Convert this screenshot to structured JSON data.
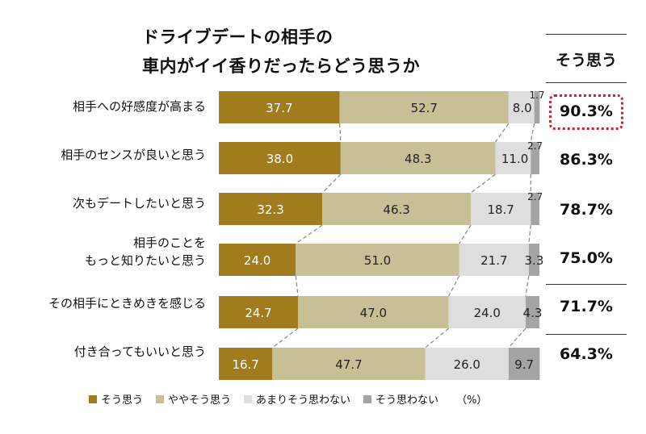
{
  "title_line1": "ドライブデートの相手の",
  "title_line2": "車内がイイ香りだったらどう思うか",
  "summary_header": "そう思う",
  "unit": "（%）",
  "colors": {
    "strongly_agree": "#a07c1f",
    "somewhat_agree": "#c9bf96",
    "not_really": "#dedede",
    "disagree": "#a4a4a4",
    "highlight": "#e0182a"
  },
  "legend": [
    {
      "label": "そう思う",
      "color": "#a07c1f"
    },
    {
      "label": "ややそう思う",
      "color": "#c9bf96"
    },
    {
      "label": "あまりそう思わない",
      "color": "#dedede"
    },
    {
      "label": "そう思わない",
      "color": "#a4a4a4"
    }
  ],
  "rows": [
    {
      "label_line1": "相手への好感度が高まる",
      "label_line2": "",
      "summary": "90.3%"
    },
    {
      "label_line1": "相手のセンスが良いと思う",
      "label_line2": "",
      "summary": "86.3%"
    },
    {
      "label_line1": "次もデートしたいと思う",
      "label_line2": "",
      "summary": "78.7%"
    },
    {
      "label_line1": "相手のことを",
      "label_line2": "もっと知りたいと思う",
      "summary": "75.0%"
    },
    {
      "label_line1": "その相手にときめきを感じる",
      "label_line2": "",
      "summary": "71.7%"
    },
    {
      "label_line1": "付き合ってもいいと思う",
      "label_line2": "",
      "summary": "64.3%"
    }
  ],
  "chart_data": {
    "type": "bar",
    "orientation": "horizontal",
    "stacked": true,
    "percent": true,
    "categories": [
      "相手への好感度が高まる",
      "相手のセンスが良いと思う",
      "次もデートしたいと思う",
      "相手のことをもっと知りたいと思う",
      "その相手にときめきを感じる",
      "付き合ってもいいと思う"
    ],
    "series": [
      {
        "name": "そう思う",
        "values": [
          37.7,
          38.0,
          32.3,
          24.0,
          24.7,
          16.7
        ]
      },
      {
        "name": "ややそう思う",
        "values": [
          52.7,
          48.3,
          46.3,
          51.0,
          47.0,
          47.7
        ]
      },
      {
        "name": "あまりそう思わない",
        "values": [
          8.0,
          11.0,
          18.7,
          21.7,
          24.0,
          26.0
        ]
      },
      {
        "name": "そう思わない",
        "values": [
          1.7,
          2.7,
          2.7,
          3.3,
          4.3,
          9.7
        ]
      }
    ],
    "value_labels": [
      [
        "37.7",
        "52.7",
        "8.0",
        "1.7"
      ],
      [
        "38.0",
        "48.3",
        "11.0",
        "2.7"
      ],
      [
        "32.3",
        "46.3",
        "18.7",
        "2.7"
      ],
      [
        "24.0",
        "51.0",
        "21.7",
        "3.3"
      ],
      [
        "24.7",
        "47.0",
        "24.0",
        "4.3"
      ],
      [
        "16.7",
        "47.7",
        "26.0",
        "9.7"
      ]
    ],
    "xlim": [
      0,
      100
    ],
    "connector_lines": true,
    "legend_position": "bottom"
  }
}
